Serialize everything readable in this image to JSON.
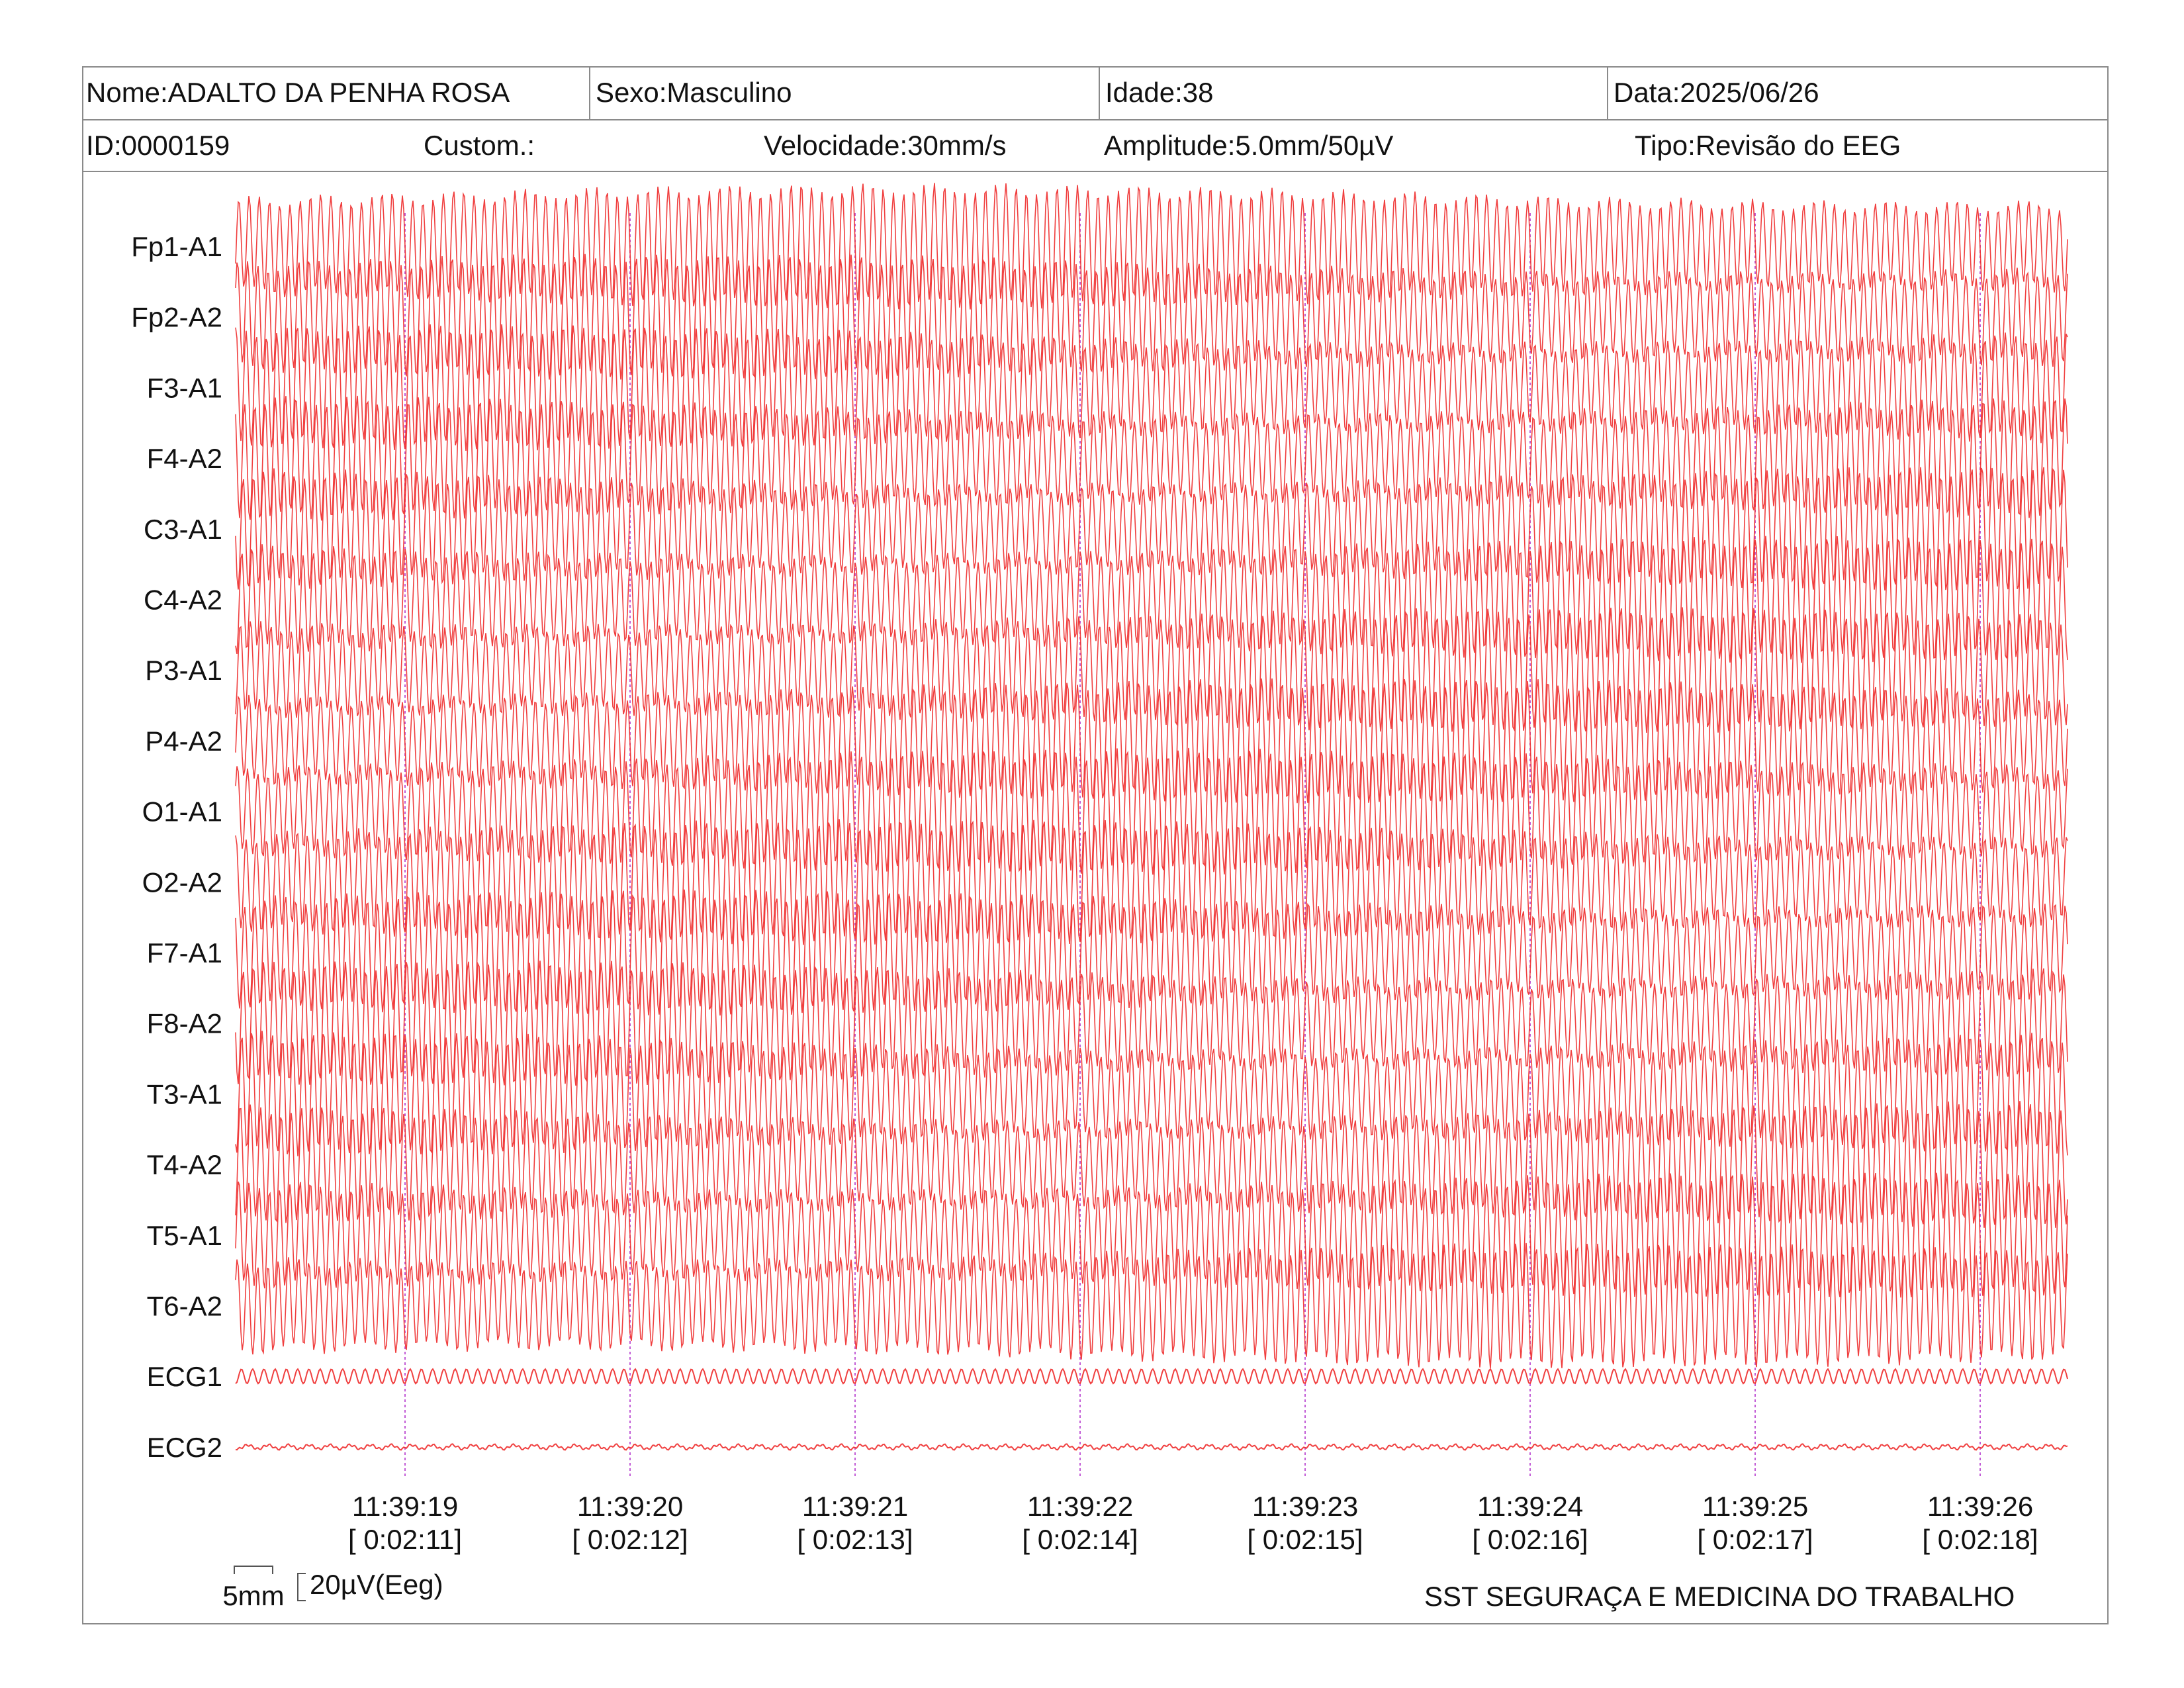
{
  "header": {
    "nome": "Nome:ADALTO DA PENHA ROSA",
    "sexo": "Sexo:Masculino",
    "idade": "Idade:38",
    "data": "Data:2025/06/26",
    "id": "ID:0000159",
    "custom": "Custom.:",
    "velocidade": "Velocidade:30mm/s",
    "amplitude": "Amplitude:5.0mm/50µV",
    "tipo": "Tipo:Revisão do EEG"
  },
  "scale": {
    "time_label": "5mm",
    "amp_label": "20µV(Eeg)"
  },
  "footer": {
    "organization": "SST SEGURAÇA E MEDICINA DO TRABALHO"
  },
  "colors": {
    "trace": "#ee2a2a",
    "marker": "#c25cd6",
    "border": "#8a8a8a"
  },
  "chart_data": {
    "type": "line",
    "channels": [
      "Fp1-A1",
      "Fp2-A2",
      "F3-A1",
      "F4-A2",
      "C3-A1",
      "C4-A2",
      "P3-A1",
      "P4-A2",
      "O1-A1",
      "O2-A2",
      "F7-A1",
      "F8-A2",
      "T3-A1",
      "T4-A2",
      "T5-A1",
      "T6-A2",
      "ECG1",
      "ECG2"
    ],
    "time_markers": [
      {
        "clock": "11:39:19",
        "elapsed": "[ 0:02:11]"
      },
      {
        "clock": "11:39:20",
        "elapsed": "[ 0:02:12]"
      },
      {
        "clock": "11:39:21",
        "elapsed": "[ 0:02:13]"
      },
      {
        "clock": "11:39:22",
        "elapsed": "[ 0:02:14]"
      },
      {
        "clock": "11:39:23",
        "elapsed": "[ 0:02:15]"
      },
      {
        "clock": "11:39:24",
        "elapsed": "[ 0:02:16]"
      },
      {
        "clock": "11:39:25",
        "elapsed": "[ 0:02:17]"
      },
      {
        "clock": "11:39:26",
        "elapsed": "[ 0:02:18]"
      }
    ],
    "time_range_s": [
      -0.75,
      7.4
    ],
    "eeg_dominant_frequency_hz": 22,
    "ecg1_frequency_hz": 20,
    "grid": false,
    "legend": "none"
  }
}
